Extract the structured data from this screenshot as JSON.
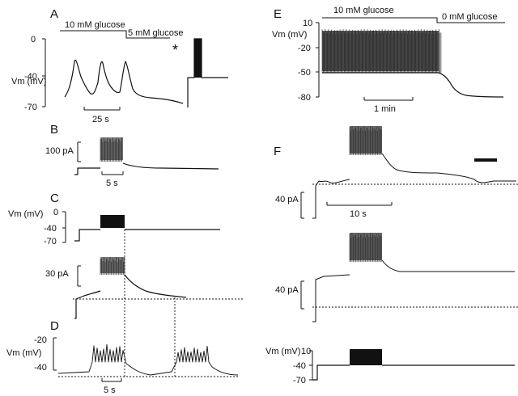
{
  "panels": {
    "A": {
      "label": "A",
      "glucose_left": "10 mM glucose",
      "glucose_right": "5 mM glucose",
      "ylabel": "Vm (mV)",
      "ticks": [
        "0",
        "-40",
        "-70"
      ],
      "scale": "25 s",
      "marker": "*"
    },
    "B": {
      "label": "B",
      "scale_y": "100 pA",
      "scale_x": "5 s"
    },
    "C": {
      "label": "C",
      "ylabel": "Vm (mV)",
      "ticks": [
        "0",
        "-40",
        "-70"
      ],
      "scale_y": "30 pA"
    },
    "D": {
      "label": "D",
      "ylabel": "Vm (mV)",
      "ticks": [
        "-20",
        "-40"
      ],
      "scale_x": "5 s"
    },
    "E": {
      "label": "E",
      "glucose_left": "10 mM glucose",
      "glucose_right": "0 mM glucose",
      "ylabel": "Vm (mV)",
      "ticks": [
        "10",
        "-20",
        "-50",
        "-80"
      ],
      "scale_x": "1 min"
    },
    "F": {
      "label": "F",
      "scale_y_top": "40 pA",
      "scale_x": "10 s",
      "scale_y_mid": "40 pA",
      "ylabel": "Vm (mV)",
      "ticks": [
        "10",
        "-40",
        "-70"
      ]
    }
  }
}
